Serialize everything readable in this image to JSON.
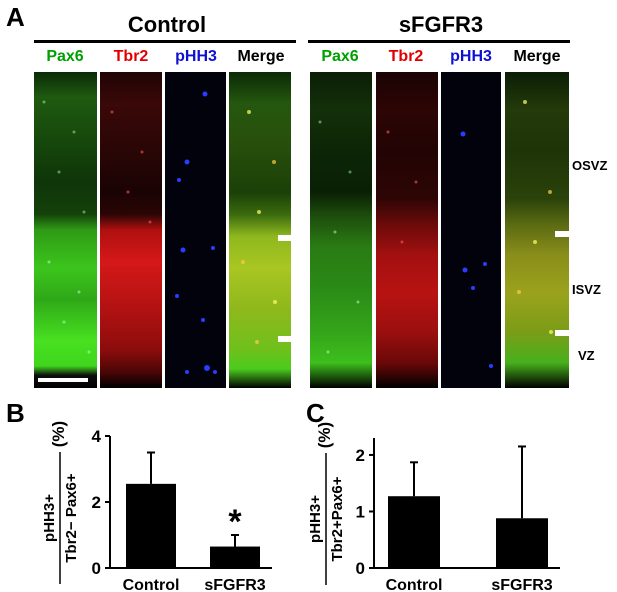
{
  "panels": {
    "a": "A",
    "b": "B",
    "c": "C"
  },
  "panel_a": {
    "groups": [
      {
        "title": "Control",
        "channels": [
          "Pax6",
          "Tbr2",
          "pHH3",
          "Merge"
        ]
      },
      {
        "title": "sFGFR3",
        "channels": [
          "Pax6",
          "Tbr2",
          "pHH3",
          "Merge"
        ]
      }
    ],
    "channel_colors": {
      "Pax6": "#00a000",
      "Tbr2": "#e00000",
      "pHH3": "#1010d0",
      "Merge": "#000000"
    },
    "zones": [
      "OSVZ",
      "ISVZ",
      "VZ"
    ]
  },
  "chart_data": [
    {
      "type": "bar",
      "panel": "B",
      "categories": [
        "Control",
        "sFGFR3"
      ],
      "values": [
        2.55,
        0.65
      ],
      "errors": [
        0.95,
        0.35
      ],
      "ylim": [
        0,
        4
      ],
      "yticks": [
        0,
        2,
        4
      ],
      "ylabel_numerator": "pHH3+",
      "ylabel_denominator": "Tbr2− Pax6+",
      "ylabel_unit": "(%)",
      "annotation": "*",
      "bar_color": "#000000"
    },
    {
      "type": "bar",
      "panel": "C",
      "categories": [
        "Control",
        "sFGFR3"
      ],
      "values": [
        1.27,
        0.88
      ],
      "errors": [
        0.6,
        1.27
      ],
      "ylim": [
        0,
        2.3
      ],
      "yticks": [
        0,
        1,
        2
      ],
      "ylabel_numerator": "pHH3+",
      "ylabel_denominator": "Tbr2+Pax6+",
      "ylabel_unit": "(%)",
      "bar_color": "#000000"
    }
  ]
}
